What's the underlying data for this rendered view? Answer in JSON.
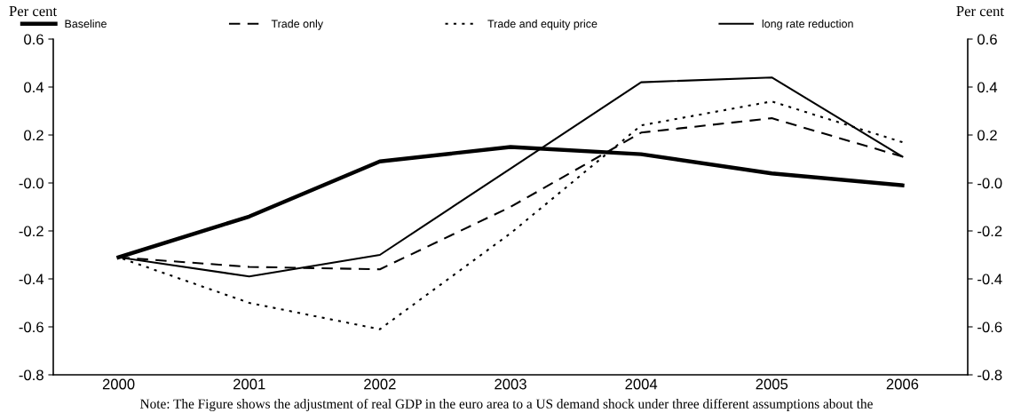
{
  "chart_data": {
    "type": "line",
    "ylabel": "Per cent",
    "y2label": "Per cent",
    "categories": [
      "2000",
      "2001",
      "2002",
      "2003",
      "2004",
      "2005",
      "2006"
    ],
    "series": [
      {
        "name": "Baseline",
        "color": "#000000",
        "line_style": "solid",
        "values": [
          -0.31,
          -0.14,
          0.09,
          0.15,
          0.12,
          0.04,
          -0.01
        ]
      },
      {
        "name": "Trade only",
        "color": "#000000",
        "line_style": "dashed",
        "values": [
          -0.31,
          -0.35,
          -0.36,
          -0.1,
          0.21,
          0.27,
          0.11
        ]
      },
      {
        "name": "Trade and equity price",
        "color": "#000000",
        "line_style": "dotted",
        "values": [
          -0.31,
          -0.5,
          -0.61,
          -0.21,
          0.24,
          0.34,
          0.17
        ]
      },
      {
        "name": "long rate reduction",
        "color": "#000000",
        "line_style": "solid",
        "values": [
          -0.31,
          -0.39,
          -0.3,
          0.06,
          0.42,
          0.44,
          0.11
        ]
      }
    ],
    "ylim": [
      -0.8,
      0.6
    ],
    "yticks": [
      -0.8,
      -0.6,
      -0.4,
      -0.2,
      {
        "value": 0,
        "label": "-0.0"
      },
      0.2,
      0.4,
      0.6
    ],
    "y2lim": [
      -0.8,
      0.6
    ],
    "y2ticks": [
      -0.8,
      -0.6,
      -0.4,
      -0.2,
      {
        "value": 0,
        "label": "-0.0"
      },
      0.2,
      0.4,
      0.6
    ],
    "grid": false,
    "legend": "top",
    "marker": "none",
    "annotations": [
      "Note: The Figure shows the adjustment of real GDP in the euro area to a US demand shock under three different assumptions about the"
    ]
  }
}
